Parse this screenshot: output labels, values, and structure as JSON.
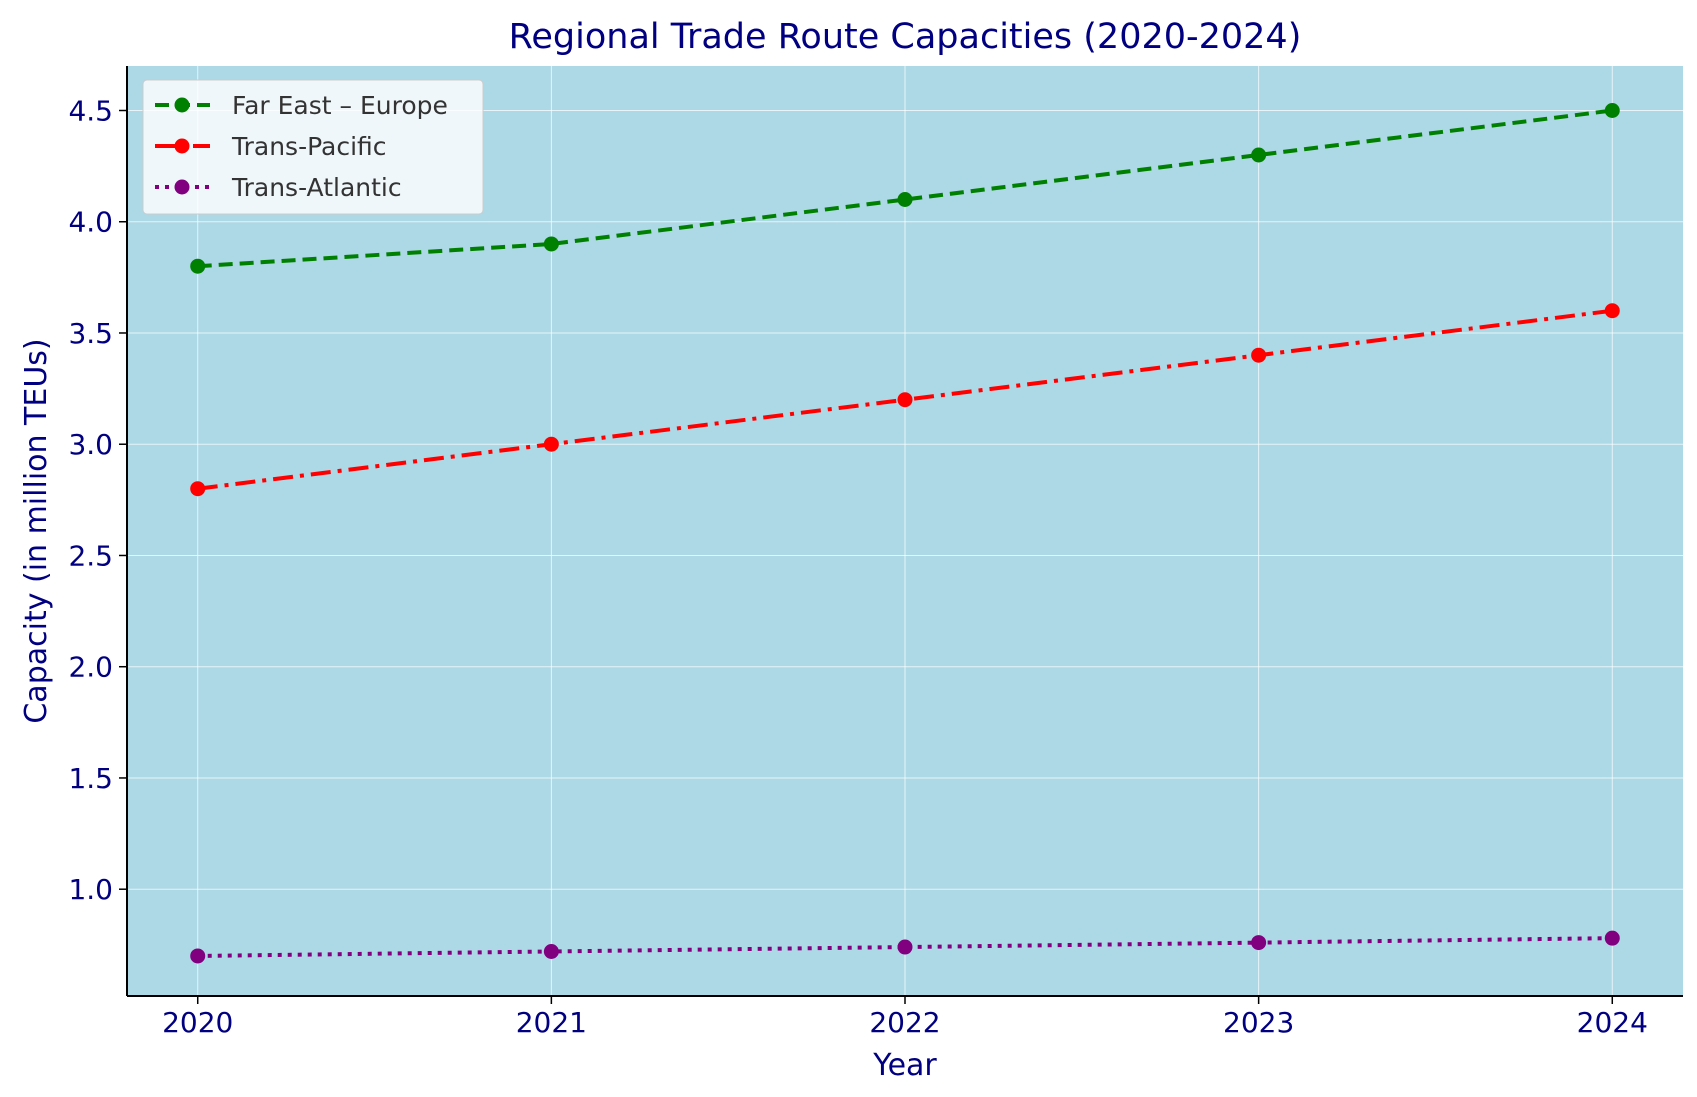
{
  "chart_data": {
    "type": "line",
    "title": "Regional Trade Route Capacities (2020-2024)",
    "xlabel": "Year",
    "ylabel": "Capacity (in million TEUs)",
    "x": [
      2020,
      2021,
      2022,
      2023,
      2024
    ],
    "x_tick_labels": [
      "2020",
      "2021",
      "2022",
      "2023",
      "2024"
    ],
    "y_ticks": [
      1.0,
      1.5,
      2.0,
      2.5,
      3.0,
      3.5,
      4.0,
      4.5
    ],
    "y_tick_labels": [
      "1.0",
      "1.5",
      "2.0",
      "2.5",
      "3.0",
      "3.5",
      "4.0",
      "4.5"
    ],
    "xlim": [
      2019.8,
      2024.2
    ],
    "ylim": [
      0.52,
      4.7
    ],
    "grid": true,
    "legend_position": "top-left",
    "plot_background": "#add8e6",
    "series": [
      {
        "name": "Far East – Europe",
        "values": [
          3.8,
          3.9,
          4.1,
          4.3,
          4.5
        ],
        "color": "#008000",
        "line_style": "dashed",
        "marker": "circle"
      },
      {
        "name": "Trans-Pacific",
        "values": [
          2.8,
          3.0,
          3.2,
          3.4,
          3.6
        ],
        "color": "#ff0000",
        "line_style": "dash-dot",
        "marker": "circle"
      },
      {
        "name": "Trans-Atlantic",
        "values": [
          0.7,
          0.72,
          0.74,
          0.76,
          0.78
        ],
        "color": "#800080",
        "line_style": "dotted",
        "marker": "circle"
      }
    ]
  }
}
